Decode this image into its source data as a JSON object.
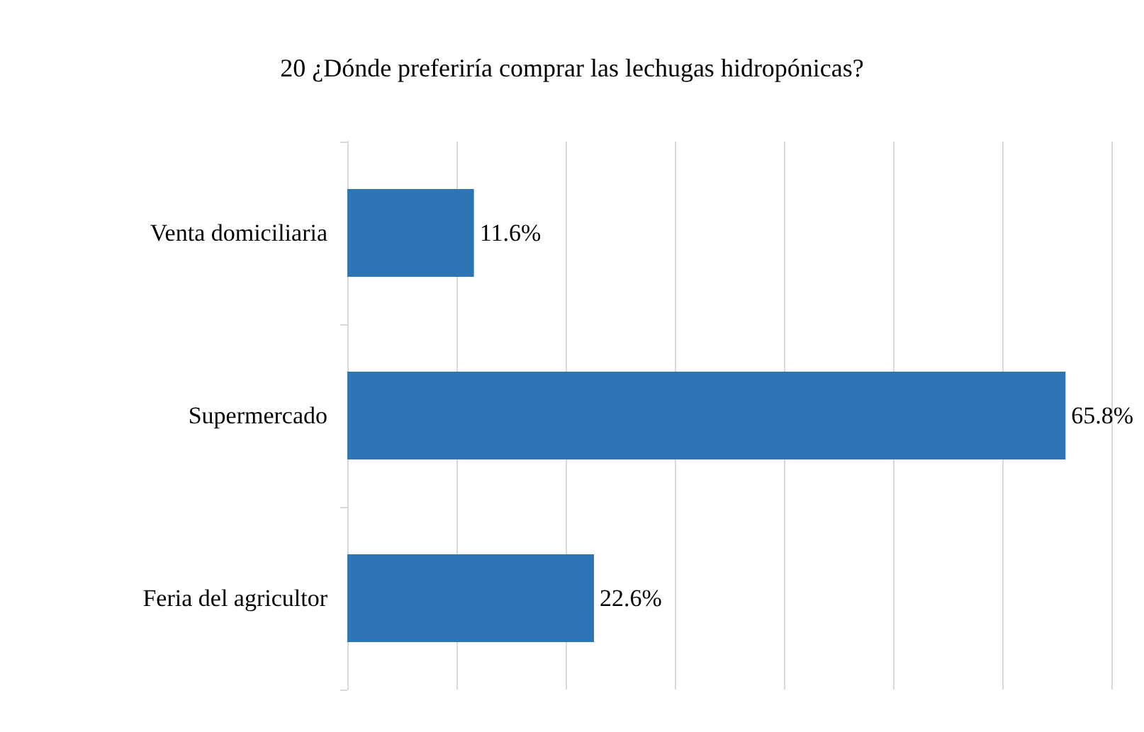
{
  "chart_data": {
    "type": "bar",
    "orientation": "horizontal",
    "title": "20 ¿Dónde preferiría comprar las lechugas hidropónicas?",
    "categories": [
      "Venta domiciliaria",
      "Supermercado",
      "Feria del agricultor"
    ],
    "values": [
      11.6,
      65.8,
      22.6
    ],
    "color": "#2e75b6",
    "value_labels": [
      "11.6%",
      "65.8%",
      "22.6%"
    ],
    "xlim": [
      0,
      70
    ],
    "xticks": [
      {
        "value": 0,
        "label": null
      },
      {
        "value": 10,
        "label": null
      },
      {
        "value": 20,
        "label": null
      },
      {
        "value": 30,
        "label": null
      },
      {
        "value": 40,
        "label": null
      },
      {
        "value": 50,
        "label": null
      },
      {
        "value": 60,
        "label": null
      },
      {
        "value": 70,
        "label": null
      }
    ],
    "tick_labels": "y",
    "grid": "x"
  }
}
